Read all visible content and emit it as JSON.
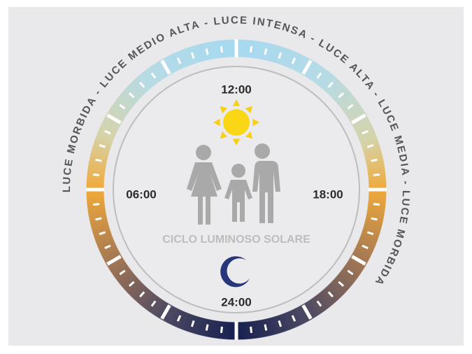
{
  "arc_label": "LUCE MORBIDA - LUCE MEDIO ALTA - LUCE INTENSA - LUCE ALTA - LUCE MEDIA - LUCE MORBIDA",
  "hours": {
    "top": "12:00",
    "left": "06:00",
    "right": "18:00",
    "bottom": "24:00"
  },
  "center_label": "CICLO LUMINOSO SOLARE"
}
